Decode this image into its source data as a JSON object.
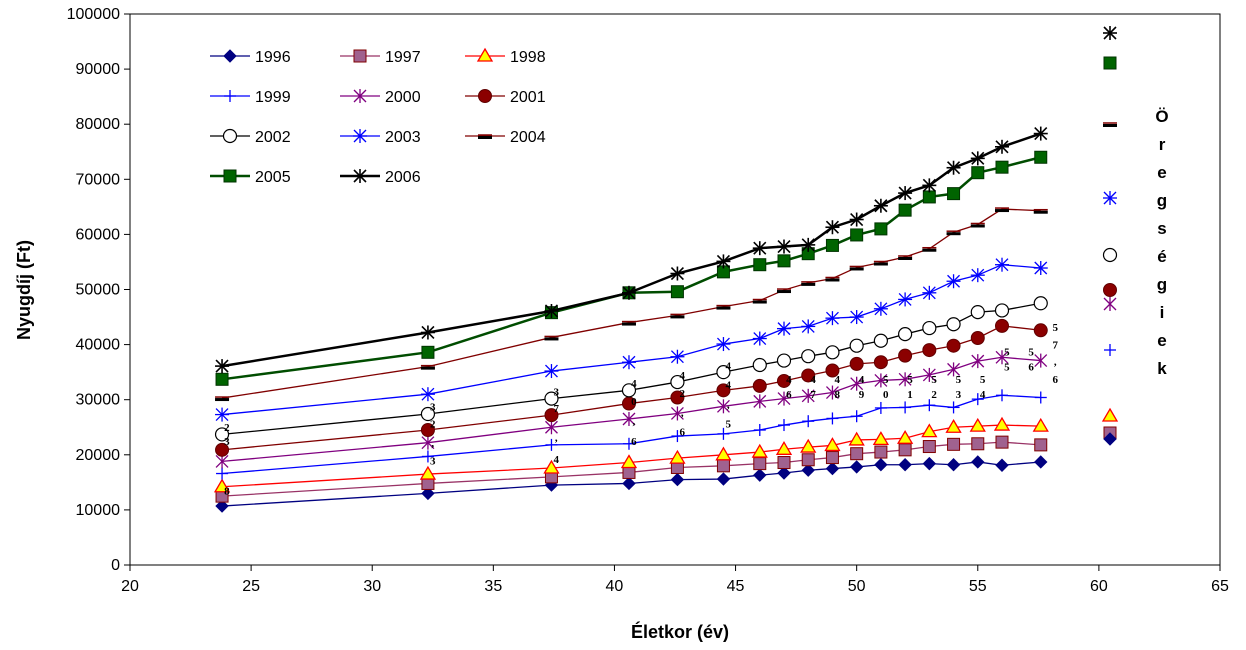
{
  "chart_data": {
    "type": "line",
    "title": "",
    "xlabel": "Életkor (év)",
    "ylabel": "Nyugdíj (Ft)",
    "xlim": [
      20,
      65
    ],
    "ylim": [
      0,
      100000
    ],
    "xticks": [
      20,
      25,
      30,
      35,
      40,
      45,
      50,
      55,
      60,
      65
    ],
    "yticks": [
      0,
      10000,
      20000,
      30000,
      40000,
      50000,
      60000,
      70000,
      80000,
      90000,
      100000
    ],
    "x": [
      23.8,
      32.3,
      37.4,
      40.6,
      42.6,
      44.5,
      46,
      47,
      48,
      49,
      50,
      51,
      52,
      53,
      54,
      55,
      56,
      57.6
    ],
    "legend_position": "top-left",
    "side_label": "Öregségiek",
    "series": [
      {
        "name": "1996",
        "color": "#000080",
        "marker": "diamond",
        "values": [
          10700,
          13000,
          14500,
          14800,
          15500,
          15600,
          16300,
          16700,
          17200,
          17500,
          17800,
          18200,
          18200,
          18400,
          18200,
          18700,
          18100,
          18700
        ]
      },
      {
        "name": "1997",
        "color": "#993366",
        "marker": "square-mauve",
        "values": [
          12500,
          14800,
          16000,
          16800,
          17700,
          18000,
          18400,
          18600,
          19100,
          19500,
          20200,
          20500,
          20900,
          21500,
          21900,
          22000,
          22300,
          21800
        ]
      },
      {
        "name": "1998",
        "color": "#ff0000",
        "marker": "triangle",
        "values": [
          14200,
          16500,
          17600,
          18600,
          19400,
          20000,
          20500,
          21000,
          21400,
          21700,
          22700,
          22800,
          23000,
          24200,
          25000,
          25200,
          25400,
          25200
        ]
      },
      {
        "name": "1999",
        "color": "#0000ff",
        "marker": "plus",
        "values": [
          16600,
          19700,
          21800,
          22000,
          23400,
          23800,
          24500,
          25400,
          26100,
          26600,
          27000,
          28500,
          28600,
          29000,
          28600,
          30100,
          30800,
          30400
        ]
      },
      {
        "name": "2000",
        "color": "#800080",
        "marker": "star",
        "values": [
          18800,
          22200,
          25000,
          26500,
          27500,
          28800,
          29700,
          30200,
          30700,
          31300,
          32900,
          33500,
          33700,
          34500,
          35500,
          37000,
          37700,
          37100
        ]
      },
      {
        "name": "2001",
        "color": "#800000",
        "marker": "circle-filled",
        "values": [
          20900,
          24500,
          27200,
          29300,
          30400,
          31700,
          32500,
          33400,
          34400,
          35300,
          36500,
          36800,
          38000,
          39000,
          39800,
          41200,
          43400,
          42600
        ]
      },
      {
        "name": "2002",
        "color": "#000000",
        "marker": "circle-open",
        "values": [
          23700,
          27400,
          30200,
          31700,
          33200,
          35000,
          36300,
          37100,
          37900,
          38600,
          39800,
          40700,
          41900,
          43000,
          43700,
          45900,
          46200,
          47500
        ]
      },
      {
        "name": "2003",
        "color": "#0000ff",
        "marker": "asterisk",
        "values": [
          27300,
          31000,
          35200,
          36800,
          37800,
          40100,
          41100,
          42900,
          43300,
          44800,
          45000,
          46500,
          48200,
          49400,
          51500,
          52600,
          54500,
          53900
        ]
      },
      {
        "name": "2004",
        "color": "#800000",
        "marker": "dash",
        "values": [
          30300,
          36000,
          41300,
          44000,
          45300,
          46900,
          48000,
          49900,
          51200,
          52000,
          54000,
          54900,
          55900,
          57400,
          60400,
          61800,
          64600,
          64300
        ]
      },
      {
        "name": "2005",
        "color": "#004d00",
        "marker": "square-green",
        "values": [
          33700,
          38600,
          45800,
          49400,
          49600,
          53200,
          54500,
          55200,
          56500,
          58000,
          59900,
          61000,
          64400,
          66800,
          67400,
          71200,
          72200,
          74000
        ]
      },
      {
        "name": "2006",
        "color": "#000000",
        "marker": "asterisk-bold",
        "values": [
          36100,
          42200,
          46100,
          49400,
          52900,
          55100,
          57500,
          57800,
          58100,
          61300,
          62700,
          65200,
          67500,
          68900,
          72100,
          73800,
          75900,
          78300
        ]
      }
    ],
    "side_markers": [
      "asterisk-bold",
      "square-green",
      "dash",
      "asterisk",
      "circle-open",
      "circle-filled",
      "star",
      "plus",
      "triangle",
      "square-mauve",
      "diamond"
    ],
    "annotations": [
      {
        "text": "2",
        "x": 24.0,
        "y": 24300
      },
      {
        "text": "3",
        "x": 24.0,
        "y": 21800
      },
      {
        "text": "8",
        "x": 24.0,
        "y": 12800
      },
      {
        "text": "3",
        "x": 32.5,
        "y": 28000
      },
      {
        "text": "2",
        "x": 32.5,
        "y": 25000
      },
      {
        "text": ",",
        "x": 32.5,
        "y": 21500
      },
      {
        "text": "3",
        "x": 32.5,
        "y": 18200
      },
      {
        "text": "3",
        "x": 37.6,
        "y": 30800
      },
      {
        "text": "7",
        "x": 37.6,
        "y": 27800
      },
      {
        "text": ",",
        "x": 37.6,
        "y": 22500
      },
      {
        "text": "4",
        "x": 37.6,
        "y": 18500
      },
      {
        "text": "4",
        "x": 40.8,
        "y": 32300
      },
      {
        "text": "0",
        "x": 40.8,
        "y": 29000
      },
      {
        "text": ",",
        "x": 40.8,
        "y": 25500
      },
      {
        "text": "6",
        "x": 40.8,
        "y": 21800
      },
      {
        "text": "4",
        "x": 42.8,
        "y": 33800
      },
      {
        "text": "2",
        "x": 42.8,
        "y": 30500
      },
      {
        "text": ",",
        "x": 42.8,
        "y": 27000
      },
      {
        "text": "6",
        "x": 42.8,
        "y": 23500
      },
      {
        "text": "4",
        "x": 44.7,
        "y": 35500
      },
      {
        "text": "4",
        "x": 44.7,
        "y": 32000
      },
      {
        "text": ",",
        "x": 44.7,
        "y": 28500
      },
      {
        "text": "5",
        "x": 44.7,
        "y": 25000
      },
      {
        "text": "4",
        "x": 47.2,
        "y": 33000
      },
      {
        "text": "6",
        "x": 47.2,
        "y": 30300
      },
      {
        "text": "4",
        "x": 48.2,
        "y": 33000
      },
      {
        "text": "7",
        "x": 48.2,
        "y": 30300
      },
      {
        "text": "4",
        "x": 49.2,
        "y": 33000
      },
      {
        "text": "8",
        "x": 49.2,
        "y": 30300
      },
      {
        "text": "4",
        "x": 50.2,
        "y": 33000
      },
      {
        "text": "9",
        "x": 50.2,
        "y": 30300
      },
      {
        "text": "5",
        "x": 51.2,
        "y": 33000
      },
      {
        "text": "0",
        "x": 51.2,
        "y": 30300
      },
      {
        "text": "5",
        "x": 52.2,
        "y": 33000
      },
      {
        "text": "1",
        "x": 52.2,
        "y": 30300
      },
      {
        "text": "5",
        "x": 53.2,
        "y": 33000
      },
      {
        "text": "2",
        "x": 53.2,
        "y": 30300
      },
      {
        "text": "5",
        "x": 54.2,
        "y": 33000
      },
      {
        "text": "3",
        "x": 54.2,
        "y": 30300
      },
      {
        "text": "5",
        "x": 55.2,
        "y": 33000
      },
      {
        "text": "4",
        "x": 55.2,
        "y": 30300
      },
      {
        "text": "5",
        "x": 56.2,
        "y": 38000
      },
      {
        "text": "5",
        "x": 56.2,
        "y": 35300
      },
      {
        "text": "5",
        "x": 57.2,
        "y": 38000
      },
      {
        "text": "6",
        "x": 57.2,
        "y": 35300
      },
      {
        "text": "5",
        "x": 58.2,
        "y": 42500
      },
      {
        "text": "7",
        "x": 58.2,
        "y": 39300
      },
      {
        "text": ",",
        "x": 58.2,
        "y": 36300
      },
      {
        "text": "6",
        "x": 58.2,
        "y": 33000
      }
    ]
  }
}
